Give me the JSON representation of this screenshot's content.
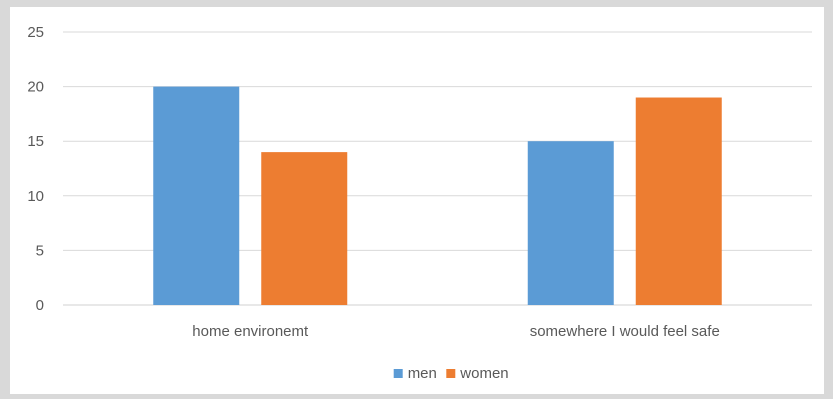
{
  "chart_data": {
    "type": "bar",
    "categories": [
      "home environemt",
      "somewhere I would feel safe"
    ],
    "series": [
      {
        "name": "men",
        "values": [
          20,
          15
        ],
        "color": "#5b9bd5"
      },
      {
        "name": "women",
        "values": [
          14,
          19
        ],
        "color": "#ed7d31"
      }
    ],
    "ylim": [
      0,
      25
    ],
    "yticks": [
      0,
      5,
      10,
      15,
      20,
      25
    ],
    "grid": true,
    "legend_position": "bottom",
    "title": "",
    "xlabel": "",
    "ylabel": ""
  }
}
